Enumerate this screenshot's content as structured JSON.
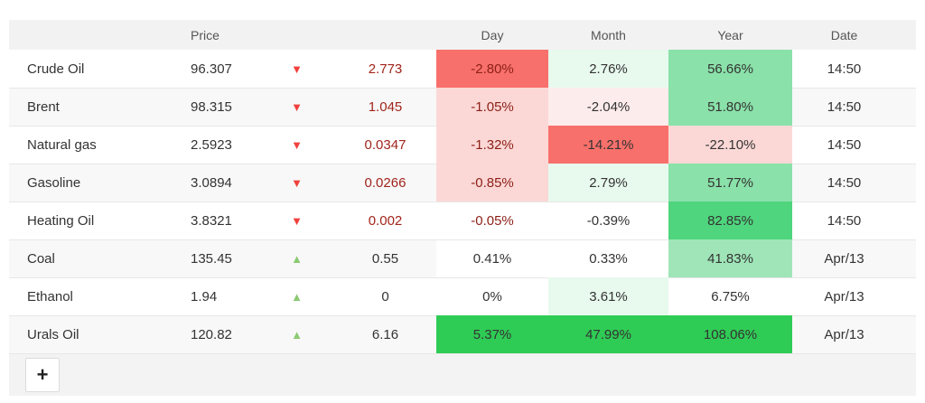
{
  "table": {
    "header": {
      "name": "",
      "price": "Price",
      "arrow": "",
      "change": "",
      "day": "Day",
      "month": "Month",
      "year": "Year",
      "date": "Date"
    },
    "rows": [
      {
        "name": "Crude Oil",
        "price": "96.307",
        "direction": "down",
        "change": "2.773",
        "day": {
          "text": "-2.80%",
          "bg": "red_strong",
          "red_text": true
        },
        "month": {
          "text": "2.76%",
          "bg": "green_xlight"
        },
        "year": {
          "text": "56.66%",
          "bg": "green_med"
        },
        "date": "14:50"
      },
      {
        "name": "Brent",
        "price": "98.315",
        "direction": "down",
        "change": "1.045",
        "day": {
          "text": "-1.05%",
          "bg": "red_light",
          "red_text": true
        },
        "month": {
          "text": "-2.04%",
          "bg": "red_xlight"
        },
        "year": {
          "text": "51.80%",
          "bg": "green_med"
        },
        "date": "14:50"
      },
      {
        "name": "Natural gas",
        "price": "2.5923",
        "direction": "down",
        "change": "0.0347",
        "day": {
          "text": "-1.32%",
          "bg": "red_light",
          "red_text": true
        },
        "month": {
          "text": "-14.21%",
          "bg": "red_strong"
        },
        "year": {
          "text": "-22.10%",
          "bg": "red_light"
        },
        "date": "14:50"
      },
      {
        "name": "Gasoline",
        "price": "3.0894",
        "direction": "down",
        "change": "0.0266",
        "day": {
          "text": "-0.85%",
          "bg": "red_light",
          "red_text": true
        },
        "month": {
          "text": "2.79%",
          "bg": "green_xlight"
        },
        "year": {
          "text": "51.77%",
          "bg": "green_med"
        },
        "date": "14:50"
      },
      {
        "name": "Heating Oil",
        "price": "3.8321",
        "direction": "down",
        "change": "0.002",
        "day": {
          "text": "-0.05%",
          "bg": "white",
          "red_text": true
        },
        "month": {
          "text": "-0.39%",
          "bg": "white"
        },
        "year": {
          "text": "82.85%",
          "bg": "green_strong"
        },
        "date": "14:50"
      },
      {
        "name": "Coal",
        "price": "135.45",
        "direction": "up",
        "change": "0.55",
        "day": {
          "text": "0.41%",
          "bg": "white"
        },
        "month": {
          "text": "0.33%",
          "bg": "white"
        },
        "year": {
          "text": "41.83%",
          "bg": "green_medlight"
        },
        "date": "Apr/13"
      },
      {
        "name": "Ethanol",
        "price": "1.94",
        "direction": "up",
        "change": "0",
        "day": {
          "text": "0%",
          "bg": "white"
        },
        "month": {
          "text": "3.61%",
          "bg": "green_xlight"
        },
        "year": {
          "text": "6.75%",
          "bg": "white"
        },
        "date": "Apr/13"
      },
      {
        "name": "Urals Oil",
        "price": "120.82",
        "direction": "up",
        "change": "6.16",
        "day": {
          "text": "5.37%",
          "bg": "green_vivid"
        },
        "month": {
          "text": "47.99%",
          "bg": "green_vivid"
        },
        "year": {
          "text": "108.06%",
          "bg": "green_vivid"
        },
        "date": "Apr/13"
      }
    ]
  },
  "footer": {
    "add_button_label": "+"
  },
  "icons": {
    "down": "▼",
    "up": "▲"
  },
  "colors": {
    "page_bg": "#ffffff",
    "header_bg": "#f2f2f2",
    "stripe_bg": "#f8f8f8",
    "footer_bg": "#f3f3f3",
    "border": "#e7e7e7",
    "text": "#333333",
    "header_text": "#555555",
    "negative_change_text": "#a1251c",
    "day_negative_text": "#8c1f17",
    "down_arrow": "#f0413d",
    "up_arrow": "#8cc973",
    "white": "#ffffff",
    "red_strong": "#f8706b",
    "red_light": "#fbd8d6",
    "red_xlight": "#fdecec",
    "green_xlight": "#e8f9ee",
    "green_med": "#8ae1a9",
    "green_medlight": "#9fe5b8",
    "green_strong": "#4fd57d",
    "green_vivid": "#2fcc55"
  }
}
